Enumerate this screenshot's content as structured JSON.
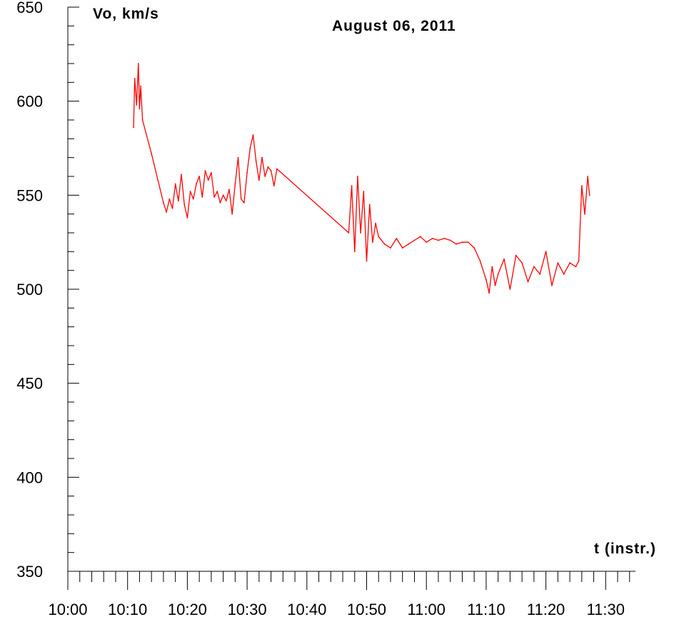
{
  "chart_data": {
    "type": "line",
    "title": "August 06, 2011",
    "ylabel": "Vo, km/s",
    "xlabel": "t (instr.)",
    "ylim": [
      350,
      650
    ],
    "xlim": [
      "10:00",
      "11:35"
    ],
    "y_ticks": [
      "350",
      "400",
      "450",
      "500",
      "550",
      "600",
      "650"
    ],
    "x_ticks": [
      "10:00",
      "10:10",
      "10:20",
      "10:30",
      "10:40",
      "10:50",
      "11:00",
      "11:10",
      "11:20",
      "11:30"
    ],
    "grid": false,
    "series": [
      {
        "color": "#ff0000",
        "x": [
          "10:11.0",
          "10:11.2",
          "10:11.5",
          "10:11.8",
          "10:12.0",
          "10:12.2",
          "10:12.5",
          "10:14.0",
          "10:16.0",
          "10:16.5",
          "10:17.0",
          "10:17.5",
          "10:18.0",
          "10:18.5",
          "10:19.0",
          "10:19.5",
          "10:20.0",
          "10:20.5",
          "10:21.0",
          "10:21.5",
          "10:22.0",
          "10:22.5",
          "10:23.0",
          "10:23.5",
          "10:24.0",
          "10:24.5",
          "10:25.0",
          "10:25.5",
          "10:26.0",
          "10:26.5",
          "10:27.0",
          "10:27.5",
          "10:28.0",
          "10:28.5",
          "10:29.0",
          "10:29.5",
          "10:30.0",
          "10:30.5",
          "10:31.0",
          "10:31.5",
          "10:32.0",
          "10:32.5",
          "10:33.0",
          "10:33.5",
          "10:34.0",
          "10:34.5",
          "10:35.0",
          "10:47.0",
          "10:47.5",
          "10:48.0",
          "10:48.5",
          "10:49.0",
          "10:49.5",
          "10:50.0",
          "10:50.5",
          "10:51.0",
          "10:51.5",
          "10:52.0",
          "10:53.0",
          "10:54.0",
          "10:55.0",
          "10:56.0",
          "10:57.0",
          "10:58.0",
          "10:59.0",
          "11:00.0",
          "11:01.0",
          "11:02.0",
          "11:03.0",
          "11:04.0",
          "11:05.0",
          "11:06.0",
          "11:07.0",
          "11:08.0",
          "11:09.0",
          "11:10.0",
          "11:10.5",
          "11:11.0",
          "11:11.5",
          "11:12.0",
          "11:13.0",
          "11:14.0",
          "11:15.0",
          "11:16.0",
          "11:17.0",
          "11:18.0",
          "11:19.0",
          "11:20.0",
          "11:21.0",
          "11:22.0",
          "11:23.0",
          "11:24.0",
          "11:25.0",
          "11:25.5",
          "11:26.0",
          "11:26.5",
          "11:27.0",
          "11:27.3"
        ],
        "y": [
          586,
          612,
          598,
          620,
          596,
          608,
          590,
          572,
          546,
          541,
          548,
          543,
          556,
          547,
          561,
          545,
          538,
          552,
          548,
          556,
          560,
          549,
          563,
          558,
          562,
          549,
          552,
          546,
          550,
          547,
          553,
          540,
          556,
          570,
          548,
          546,
          562,
          575,
          582,
          568,
          558,
          570,
          560,
          565,
          563,
          555,
          564,
          530,
          555,
          520,
          560,
          530,
          552,
          515,
          545,
          525,
          535,
          528,
          524,
          522,
          527,
          522,
          524,
          526,
          528,
          525,
          527,
          526,
          527,
          526,
          524,
          525,
          525,
          522,
          515,
          505,
          498,
          512,
          502,
          508,
          516,
          500,
          518,
          514,
          504,
          512,
          508,
          520,
          502,
          514,
          508,
          514,
          512,
          515,
          555,
          540,
          560,
          550
        ]
      }
    ]
  }
}
